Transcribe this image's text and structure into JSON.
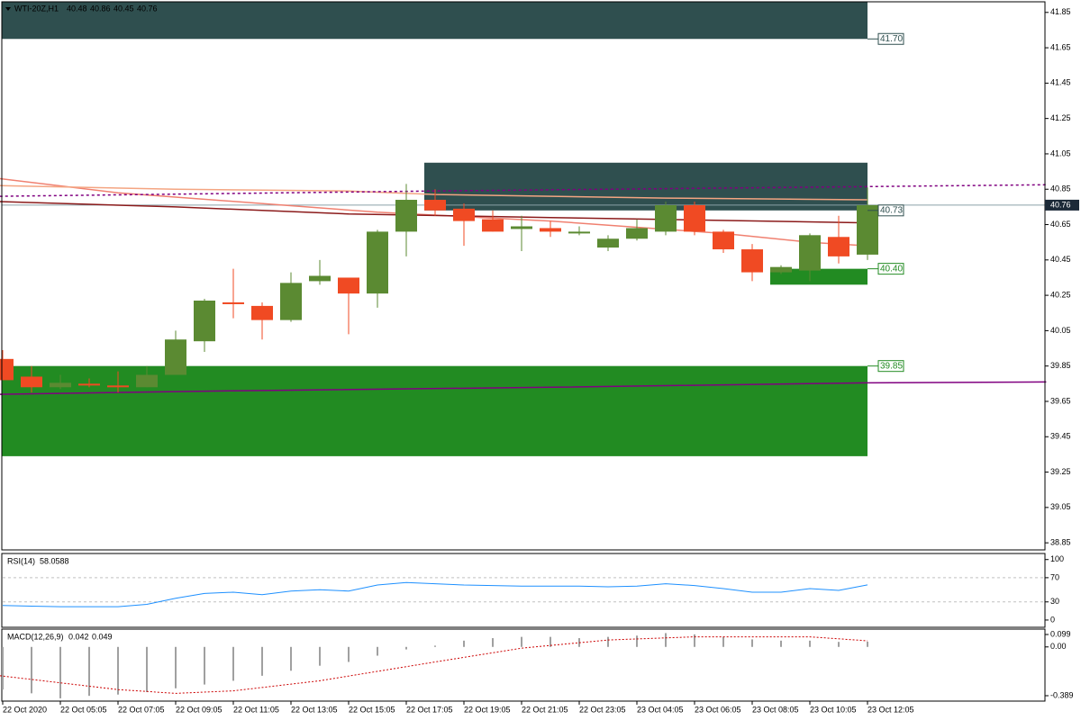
{
  "chart_data": {
    "type": "candlestick",
    "symbol": "WTI-20Z,H1",
    "categories": [
      "22 Oct 2020",
      null,
      "22 Oct 05:05",
      null,
      "22 Oct 07:05",
      null,
      "22 Oct 09:05",
      null,
      "22 Oct 11:05",
      null,
      "22 Oct 13:05",
      null,
      "22 Oct 15:05",
      null,
      "22 Oct 17:05",
      null,
      "22 Oct 19:05",
      null,
      "22 Oct 21:05",
      null,
      "22 Oct 23:05",
      null,
      "23 Oct 04:05",
      null,
      "23 Oct 06:05",
      null,
      "23 Oct 08:05",
      null,
      "23 Oct 10:05",
      null,
      "23 Oct 12:05"
    ],
    "open": [
      39.89,
      39.79,
      39.73,
      39.75,
      39.74,
      39.73,
      39.8,
      39.99,
      40.21,
      40.19,
      40.11,
      40.33,
      40.35,
      40.26,
      40.61,
      40.79,
      40.74,
      40.68,
      40.625,
      40.63,
      40.61,
      40.52,
      40.57,
      40.61,
      40.76,
      40.61,
      40.51,
      40.38,
      40.39,
      40.58,
      40.48
    ],
    "high": [
      39.94,
      39.85,
      39.8,
      39.78,
      39.82,
      39.85,
      40.05,
      40.23,
      40.4,
      40.21,
      40.38,
      40.45,
      40.35,
      40.62,
      40.88,
      40.85,
      40.77,
      40.73,
      40.7,
      40.67,
      40.64,
      40.59,
      40.68,
      40.78,
      40.78,
      40.62,
      40.54,
      40.42,
      40.6,
      40.7,
      40.86
    ],
    "low": [
      39.77,
      39.7,
      39.72,
      39.73,
      39.7,
      39.73,
      39.8,
      39.93,
      40.12,
      40.0,
      40.1,
      40.31,
      40.03,
      40.18,
      40.47,
      40.7,
      40.53,
      40.61,
      40.5,
      40.58,
      40.59,
      40.5,
      40.56,
      40.59,
      40.59,
      40.49,
      40.33,
      40.37,
      40.33,
      40.43,
      40.45
    ],
    "close": [
      39.77,
      39.73,
      39.755,
      39.74,
      39.73,
      39.8,
      40.0,
      40.22,
      40.2,
      40.11,
      40.32,
      40.36,
      40.26,
      40.61,
      40.79,
      40.73,
      40.67,
      40.61,
      40.64,
      40.61,
      40.61,
      40.57,
      40.63,
      40.76,
      40.61,
      40.51,
      40.38,
      40.41,
      40.59,
      40.47,
      40.76
    ],
    "up_color": "#5b8a32",
    "down_color": "#f04a23",
    "ylim": [
      38.81,
      41.91
    ],
    "yticks": [
      41.85,
      41.65,
      41.45,
      41.25,
      41.05,
      40.85,
      40.65,
      40.45,
      40.25,
      40.05,
      39.85,
      39.65,
      39.45,
      39.25,
      39.05,
      38.85
    ],
    "last_price": 40.76,
    "zones": [
      {
        "from": 41.7,
        "to": 41.91,
        "start": 0,
        "end": 30,
        "color": "#2f4f4f"
      },
      {
        "from": 40.73,
        "to": 41.0,
        "start": 15,
        "end": 30,
        "color": "#2f4f4f"
      },
      {
        "from": 40.31,
        "to": 40.4,
        "start": 27,
        "end": 30,
        "color": "#228b22"
      },
      {
        "from": 39.34,
        "to": 39.85,
        "start": 0,
        "end": 30,
        "color": "#228b22"
      }
    ],
    "levels": [
      {
        "value": 41.7,
        "label": "41.70",
        "color": "#2f4f4f"
      },
      {
        "value": 40.73,
        "label": "40.73",
        "color": "#2f4f4f"
      },
      {
        "value": 40.4,
        "label": "40.40",
        "color": "#228b22"
      },
      {
        "value": 39.85,
        "label": "39.85",
        "color": "#228b22"
      }
    ],
    "lines": [
      {
        "color": "#f08070",
        "style": "solid",
        "x": [
          -0.1,
          4,
          13,
          19,
          25,
          28,
          30
        ],
        "values": [
          40.91,
          40.83,
          40.72,
          40.67,
          40.6,
          40.55,
          40.53
        ]
      },
      {
        "color": "#f4a582",
        "style": "solid",
        "x": [
          -0.1,
          6,
          12,
          15,
          23,
          30
        ],
        "values": [
          40.87,
          40.85,
          40.84,
          40.82,
          40.8,
          40.79
        ]
      },
      {
        "color": "#8b1a1a",
        "style": "solid",
        "x": [
          -0.1,
          6,
          12,
          19,
          30
        ],
        "values": [
          40.78,
          40.75,
          40.71,
          40.69,
          40.66
        ]
      },
      {
        "color": "#800080",
        "style": "solid",
        "x": [
          -0.1,
          8,
          19,
          30,
          36.2
        ],
        "values": [
          39.69,
          39.71,
          39.73,
          39.755,
          39.76
        ]
      },
      {
        "color": "#800080",
        "style": "dotted",
        "x": [
          -0.1,
          15,
          36.2
        ],
        "values": [
          40.81,
          40.84,
          40.875
        ]
      }
    ],
    "rsi": {
      "title": "RSI(14)",
      "color": "#1e90ff",
      "ylim": [
        -12,
        110
      ],
      "yticks": [
        100,
        70,
        30,
        0
      ],
      "levels": [
        70,
        30
      ],
      "values": [
        24,
        23,
        22,
        22,
        22,
        26,
        36,
        44,
        46,
        42,
        48,
        50,
        48,
        58,
        62,
        60,
        58,
        57,
        56,
        56,
        56,
        55,
        56,
        60,
        57,
        52,
        46,
        46,
        52,
        49,
        58.0588
      ]
    },
    "macd": {
      "title": "MACD(12,26,9)",
      "color": "#a0a0a0",
      "signal_color": "#cc0000",
      "ylim": [
        -0.432,
        0.142
      ],
      "yticks": [
        0.099,
        {
          "value": 0,
          "label": "0.00"
        },
        -0.389
      ],
      "values": [
        -0.34,
        -0.37,
        -0.41,
        -0.39,
        -0.38,
        -0.36,
        -0.33,
        -0.3,
        -0.27,
        -0.23,
        -0.19,
        -0.15,
        -0.12,
        -0.07,
        -0.02,
        0.01,
        0.05,
        0.07,
        0.08,
        0.08,
        0.07,
        0.08,
        0.09,
        0.11,
        0.1,
        0.08,
        0.06,
        0.05,
        0.05,
        0.04,
        0.042
      ],
      "signal_x": [
        -0.1,
        4,
        6,
        8,
        11,
        15,
        18,
        21,
        24,
        28,
        30
      ],
      "signal": [
        -0.23,
        -0.34,
        -0.37,
        -0.35,
        -0.27,
        -0.12,
        -0.01,
        0.055,
        0.08,
        0.08,
        0.049
      ]
    }
  }
}
